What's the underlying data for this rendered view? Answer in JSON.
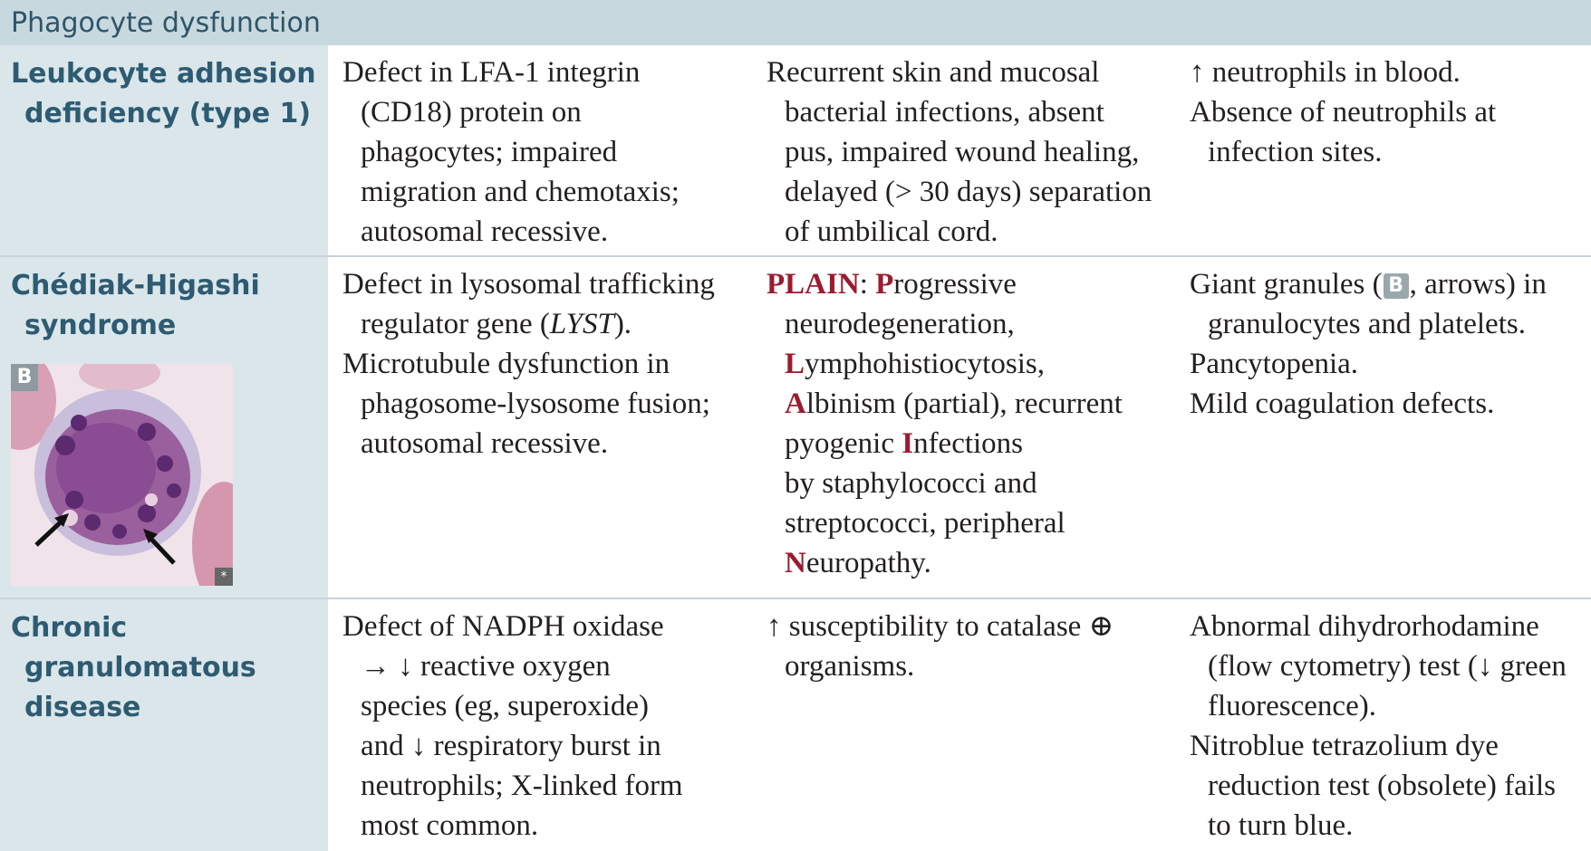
{
  "header": {
    "title": "Phagocyte dysfunction"
  },
  "rows": [
    {
      "name": [
        "Leukocyte adhesion",
        "deficiency (type 1)"
      ],
      "defect": [
        "Defect in LFA-1 integrin",
        "(CD18) protein on",
        "phagocytes; impaired",
        "migration and chemotaxis;",
        "autosomal recessive."
      ],
      "presentation": [
        "Recurrent skin and mucosal",
        "bacterial infections, absent",
        "pus, impaired wound healing,",
        "delayed (> 30 days) separation",
        "of umbilical cord."
      ],
      "findings": [
        "↑ neutrophils in blood.",
        "Absence of neutrophils at",
        "infection sites."
      ]
    },
    {
      "name": [
        "Chédiak-Higashi",
        "syndrome"
      ],
      "image_label": "B",
      "image_corner": "*",
      "defect": [
        "Defect in lysosomal trafficking",
        "regulator gene (",
        "LYST",
        ").",
        "Microtubule dysfunction in",
        "phagosome-lysosome fusion;",
        "autosomal recessive."
      ],
      "presentation": {
        "mnemonic": "PLAIN",
        "lines": [
          [
            "P",
            "rogressive"
          ],
          [
            "neurodegeneration,"
          ],
          [
            "L",
            "ymphohistiocytosis,"
          ],
          [
            "A",
            "lbinism (partial), recurrent"
          ],
          [
            "pyogenic ",
            "I",
            "nfections"
          ],
          [
            "by staphylococci and"
          ],
          [
            "streptococci, peripheral"
          ],
          [
            "N",
            "europathy."
          ]
        ]
      },
      "findings": [
        "Giant granules (",
        "B",
        ", arrows) in",
        "granulocytes and platelets.",
        "Pancytopenia.",
        "Mild coagulation defects."
      ]
    },
    {
      "name": [
        "Chronic",
        "granulomatous",
        "disease"
      ],
      "defect": [
        "Defect of NADPH oxidase",
        "→ ↓ reactive oxygen",
        "species (eg, superoxide)",
        "and ↓ respiratory burst in",
        "neutrophils; X-linked form",
        "most common."
      ],
      "presentation": [
        "↑ susceptibility to catalase ⊕",
        "organisms."
      ],
      "findings": [
        "Abnormal dihydrorhodamine",
        "(flow cytometry) test (↓ green",
        "fluorescence).",
        "Nitroblue tetrazolium dye",
        "reduction test (obsolete) fails",
        "to turn blue."
      ]
    }
  ],
  "colors": {
    "header_bg": "#c7d8df",
    "header_text": "#2e5467",
    "name_column_bg": "#dae6ea",
    "name_text": "#2d5b72",
    "mnemonic_red": "#9b1b30"
  }
}
